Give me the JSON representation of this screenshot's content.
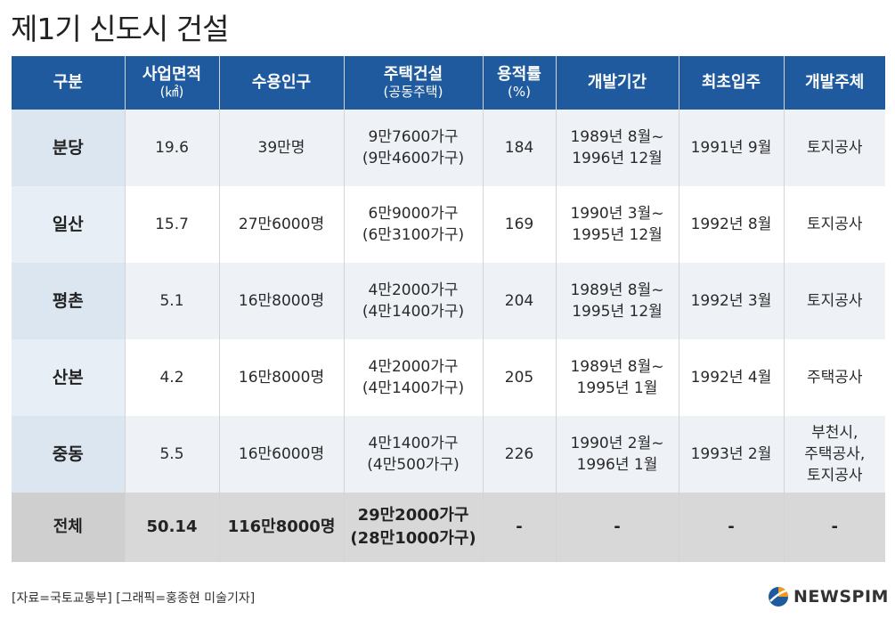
{
  "title": "제1기 신도시 건설",
  "chart_data": {
    "type": "table",
    "columns": [
      {
        "label": "구분",
        "sub": ""
      },
      {
        "label": "사업면적",
        "sub": "(㎢)"
      },
      {
        "label": "수용인구",
        "sub": ""
      },
      {
        "label": "주택건설",
        "sub": "(공동주택)"
      },
      {
        "label": "용적률",
        "sub": "(%)"
      },
      {
        "label": "개발기간",
        "sub": ""
      },
      {
        "label": "최초입주",
        "sub": ""
      },
      {
        "label": "개발주체",
        "sub": ""
      }
    ],
    "rows": [
      {
        "name": "분당",
        "area": "19.6",
        "population": "39만명",
        "housing": [
          "9만7600가구",
          "(9만4600가구)"
        ],
        "far": "184",
        "period": [
          "1989년 8월~",
          "1996년 12월"
        ],
        "first_move_in": "1991년 9월",
        "developer": [
          "토지공사"
        ]
      },
      {
        "name": "일산",
        "area": "15.7",
        "population": "27만6000명",
        "housing": [
          "6만9000가구",
          "(6만3100가구)"
        ],
        "far": "169",
        "period": [
          "1990년 3월~",
          "1995년 12월"
        ],
        "first_move_in": "1992년 8월",
        "developer": [
          "토지공사"
        ]
      },
      {
        "name": "평촌",
        "area": "5.1",
        "population": "16만8000명",
        "housing": [
          "4만2000가구",
          "(4만1400가구)"
        ],
        "far": "204",
        "period": [
          "1989년 8월~",
          "1995년 12월"
        ],
        "first_move_in": "1992년 3월",
        "developer": [
          "토지공사"
        ]
      },
      {
        "name": "산본",
        "area": "4.2",
        "population": "16만8000명",
        "housing": [
          "4만2000가구",
          "(4만1400가구)"
        ],
        "far": "205",
        "period": [
          "1989년 8월~",
          "1995년 1월"
        ],
        "first_move_in": "1992년 4월",
        "developer": [
          "주택공사"
        ]
      },
      {
        "name": "중동",
        "area": "5.5",
        "population": "16만6000명",
        "housing": [
          "4만1400가구",
          "(4만500가구)"
        ],
        "far": "226",
        "period": [
          "1990년 2월~",
          "1996년 1월"
        ],
        "first_move_in": "1993년 2월",
        "developer": [
          "부천시,",
          "주택공사,",
          "토지공사"
        ]
      }
    ],
    "total": {
      "name": "전체",
      "area": "50.14",
      "population": "116만8000명",
      "housing": [
        "29만2000가구",
        "(28만1000가구)"
      ],
      "far": "-",
      "period": "-",
      "first_move_in": "-",
      "developer": "-"
    }
  },
  "source": "[자료=국토교통부] [그래픽=홍종현 미술기자]",
  "logo_text": "NEWSPIM",
  "colors": {
    "header_bg": "#1f5a9e",
    "row_alt": "#eef2f6",
    "total_bg": "#d8d8d8"
  }
}
